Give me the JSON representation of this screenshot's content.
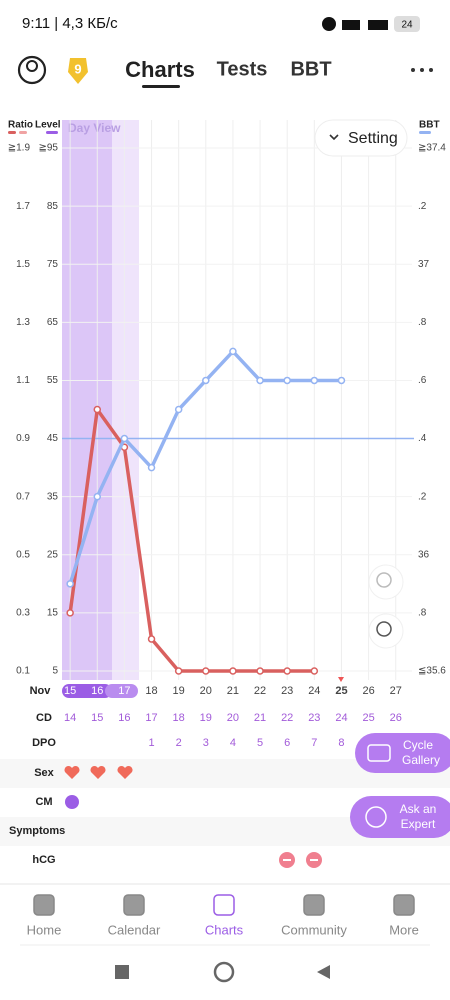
{
  "status_bar": {
    "time": "9:11 | 4,3 КБ/с",
    "battery": "24"
  },
  "header": {
    "badge": "9",
    "tabs": [
      "Charts",
      "Tests",
      "BBT"
    ]
  },
  "chart_data": {
    "type": "line",
    "view_label": "Day View",
    "setting": "Setting",
    "level_axis_title": "Level",
    "x": [
      15,
      16,
      17,
      18,
      19,
      20,
      21,
      22,
      23,
      24,
      25
    ],
    "xlim": [
      14.7,
      27.6
    ],
    "xticks": [
      15,
      16,
      17,
      18,
      19,
      20,
      21,
      22,
      23,
      24,
      25,
      26,
      27
    ],
    "x_label": "Nov",
    "ylim": [
      0.1,
      1.9
    ],
    "yticks": [
      {
        "value": 1.9,
        "label": "≧1.9"
      },
      1.7,
      1.5,
      1.3,
      1.1,
      0.9,
      0.7,
      0.5,
      0.3,
      0.1
    ],
    "level_lim": [
      5,
      95
    ],
    "level_ticks": [
      {
        "value": 95,
        "label": "≧95"
      },
      85,
      75,
      65,
      55,
      45,
      35,
      25,
      15,
      5
    ],
    "y2lim": [
      35.6,
      37.4
    ],
    "y2ticks": [
      {
        "value": 37.4,
        "label": "≧37.4"
      },
      {
        "value": 37.2,
        "label": ".2"
      },
      37,
      {
        "value": 36.8,
        "label": ".8"
      },
      {
        "value": 36.6,
        "label": ".6"
      },
      {
        "value": 36.4,
        "label": ".4"
      },
      {
        "value": 36.2,
        "label": ".2"
      },
      36,
      {
        "value": 35.8,
        "label": ".8"
      },
      {
        "value": 35.6,
        "label": "≦35.6"
      }
    ],
    "coverline": 36.4,
    "grid": true,
    "series": [
      {
        "name": "Ratio",
        "color": "#d9605f",
        "values": [
          0.3,
          1.0,
          0.87,
          0.21,
          0.1,
          0.1,
          0.1,
          0.1,
          0.1,
          0.1,
          null
        ]
      },
      {
        "name": "BBT",
        "color": "#94b3f2",
        "axis": "y2",
        "values": [
          35.9,
          36.2,
          36.4,
          36.3,
          36.5,
          36.6,
          36.7,
          36.6,
          36.6,
          36.6,
          36.6
        ]
      }
    ]
  },
  "day_table": {
    "row_labels": [
      "CD",
      "DPO",
      "Sex",
      "CM",
      "Symptoms",
      "hCG"
    ],
    "cd": [
      14,
      15,
      16,
      17,
      18,
      19,
      20,
      21,
      22,
      23,
      24,
      25,
      26
    ],
    "dpo": [
      null,
      null,
      null,
      1,
      2,
      3,
      4,
      5,
      6,
      7,
      8,
      null,
      null
    ]
  },
  "buttons": [
    [
      "Cycle",
      "Gallery"
    ],
    [
      "Ask an",
      "Expert"
    ]
  ],
  "nav": [
    "Home",
    "Calendar",
    "Charts",
    "Community",
    "More"
  ]
}
